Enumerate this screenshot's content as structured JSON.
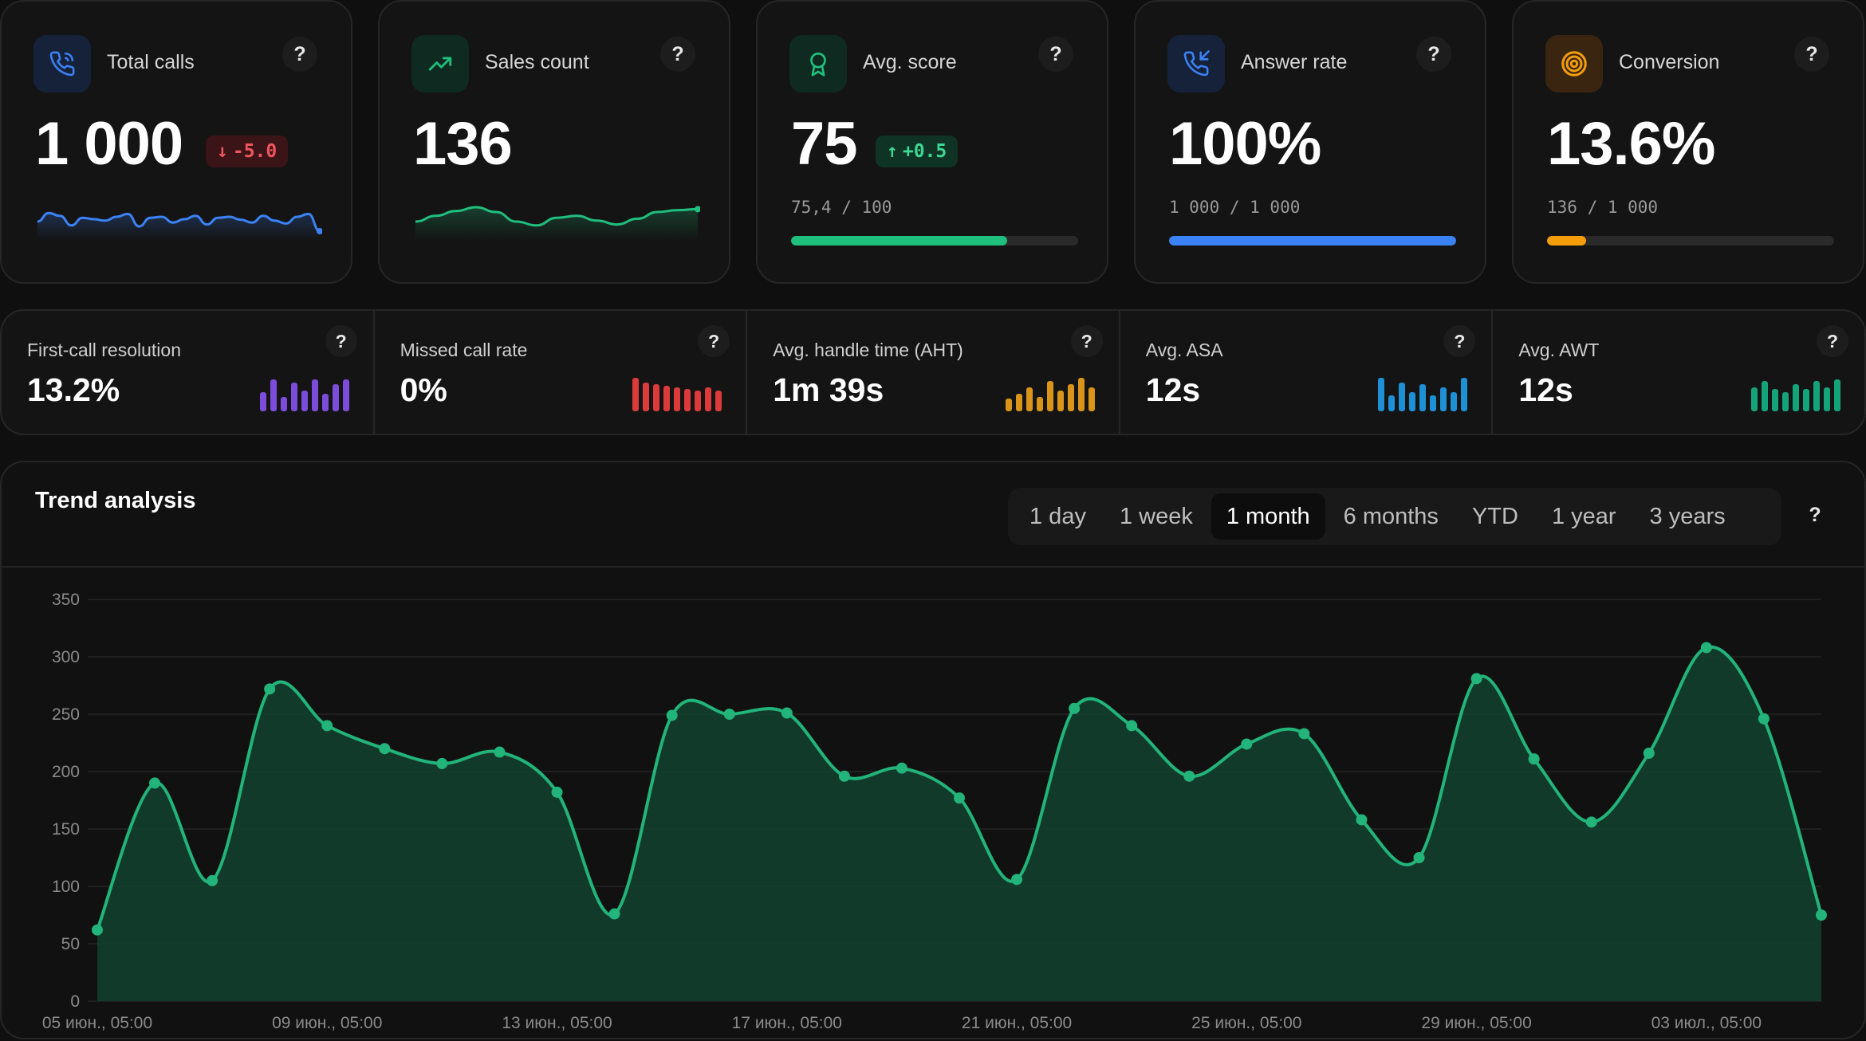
{
  "kpis": [
    {
      "id": "total-calls",
      "title": "Total calls",
      "value": "1 000",
      "badge": "-5.0",
      "badge_dir": "down",
      "icon": "phone-icon",
      "accent": "#3b82f6",
      "icon_bg": "#16223a",
      "sparkline": [
        60,
        42,
        48,
        68,
        52,
        55,
        58,
        50,
        44,
        70,
        52,
        50,
        62,
        55,
        48,
        66,
        52,
        50,
        56,
        62,
        48,
        58,
        64,
        50,
        44,
        80
      ]
    },
    {
      "id": "sales-count",
      "title": "Sales count",
      "value": "136",
      "icon": "trend-up-icon",
      "accent": "#1fbf7e",
      "icon_bg": "#0f2a20",
      "sparkline": [
        60,
        48,
        38,
        30,
        40,
        60,
        68,
        52,
        48,
        58,
        66,
        54,
        40,
        36,
        34
      ]
    },
    {
      "id": "avg-score",
      "title": "Avg. score",
      "value": "75",
      "badge": "+0.5",
      "badge_dir": "up",
      "icon": "award-icon",
      "accent": "#1fbf7e",
      "icon_bg": "#0f2a20",
      "ratio": "75,4 / 100",
      "progress": 0.754
    },
    {
      "id": "answer-rate",
      "title": "Answer rate",
      "value": "100%",
      "icon": "phone-incoming-icon",
      "accent": "#3b82f6",
      "icon_bg": "#16223a",
      "ratio": "1 000 / 1 000",
      "progress": 1.0
    },
    {
      "id": "conversion",
      "title": "Conversion",
      "value": "13.6%",
      "icon": "target-icon",
      "accent": "#f59e0b",
      "icon_bg": "#3a2510",
      "ratio": "136 / 1 000",
      "progress": 0.136
    }
  ],
  "metrics": [
    {
      "id": "first-call-resolution",
      "title": "First-call resolution",
      "value": "13.2%",
      "color": "#7c4ddb",
      "bars": [
        24,
        40,
        18,
        36,
        26,
        40,
        22,
        34,
        40
      ]
    },
    {
      "id": "missed-call-rate",
      "title": "Missed call rate",
      "value": "0%",
      "color": "#dc3b3b",
      "bars": [
        42,
        36,
        34,
        32,
        30,
        28,
        26,
        30,
        26
      ]
    },
    {
      "id": "avg-handle-time",
      "title": "Avg. handle time (AHT)",
      "value": "1m 39s",
      "color": "#d9941a",
      "bars": [
        16,
        22,
        30,
        18,
        38,
        26,
        34,
        42,
        30
      ]
    },
    {
      "id": "avg-asa",
      "title": "Avg. ASA",
      "value": "12s",
      "color": "#1e90d6",
      "bars": [
        42,
        20,
        36,
        24,
        34,
        20,
        30,
        24,
        42
      ]
    },
    {
      "id": "avg-awt",
      "title": "Avg. AWT",
      "value": "12s",
      "color": "#15a37a",
      "bars": [
        30,
        38,
        28,
        24,
        34,
        28,
        38,
        30,
        40
      ]
    }
  ],
  "trend": {
    "heading": "Trend analysis",
    "periods": [
      "1 day",
      "1 week",
      "1 month",
      "6 months",
      "YTD",
      "1 year",
      "3 years"
    ],
    "active_period": "1 month",
    "help": "?"
  },
  "help_label": "?",
  "chart_data": {
    "type": "area",
    "x_ticks": [
      "05 июн., 05:00",
      "09 июн., 05:00",
      "13 июн., 05:00",
      "17 июн., 05:00",
      "21 июн., 05:00",
      "25 июн., 05:00",
      "29 июн., 05:00",
      "03 июл., 05:00"
    ],
    "y_ticks": [
      0,
      50,
      100,
      150,
      200,
      250,
      300,
      350
    ],
    "ylim": [
      0,
      350
    ],
    "series": [
      {
        "color": "#22b47a",
        "values": [
          62,
          190,
          105,
          272,
          240,
          220,
          207,
          217,
          182,
          76,
          249,
          250,
          251,
          196,
          203,
          177,
          106,
          255,
          240,
          196,
          224,
          233,
          158,
          125,
          281,
          211,
          156,
          216,
          308,
          246,
          75
        ]
      }
    ],
    "grid": true
  }
}
